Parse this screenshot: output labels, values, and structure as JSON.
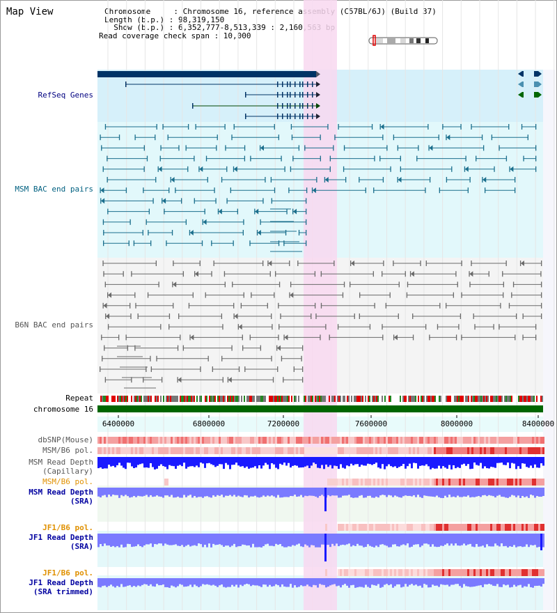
{
  "header": {
    "title": "Map View",
    "info_lines": [
      "Chromosome     : Chromosome 16, reference assembly (C57BL/6J) (Build 37)",
      "Length (b.p.) : 98,319,150",
      "  Show (b.p.) : 6,352,777-8,513,339 : 2,160,563 bp",
      "Read coverage check span : 10,000"
    ]
  },
  "tracks": {
    "refseq": "RefSeq Genes",
    "msm_bac": "MSM BAC end pairs",
    "b6n_bac": "B6N BAC end pairs",
    "repeat": "Repeat",
    "chromosome": "chromosome 16",
    "dbsnp": "dbSNP(Mouse)",
    "msm_b6_pol_1": "MSM/B6 pol.",
    "msm_read_depth_cap_1": "MSM Read Depth",
    "msm_read_depth_cap_2": "(Capillary)",
    "msm_b6_pol_2": "MSM/B6 pol.",
    "msm_read_depth_sra_1": "MSM Read Depth",
    "msm_read_depth_sra_2": "(SRA)",
    "jf1_b6_pol_1": "JF1/B6 pol.",
    "jf1_read_depth_sra_1": "JF1 Read Depth",
    "jf1_read_depth_sra_2": "(SRA)",
    "jf1_b6_pol_2": "JF1/B6 pol.",
    "jf1_read_depth_trim_1": "JF1 Read Depth",
    "jf1_read_depth_trim_2": "(SRA trimmed)"
  },
  "axis": {
    "ticks": [
      "6400000",
      "6800000",
      "7200000",
      "7600000",
      "8000000",
      "8400000"
    ]
  },
  "colors": {
    "highlight": "#f8d8f0",
    "refseq_bg": "#d6f0fa",
    "msm_bg": "#e2f8fb",
    "b6n_bg": "#f4f4f4",
    "gene": "#003366",
    "msm_pair": "#1a6e8c",
    "b6n_pair": "#6a6a6a",
    "chromosome_bar": "#006600",
    "snp": "#f08080",
    "depth_blue": "#1a1aff",
    "depth_light": "#7a7aff",
    "label_navy": "#000080",
    "label_orange": "#e09000",
    "label_teal": "#006080",
    "label_gray": "#555555"
  }
}
